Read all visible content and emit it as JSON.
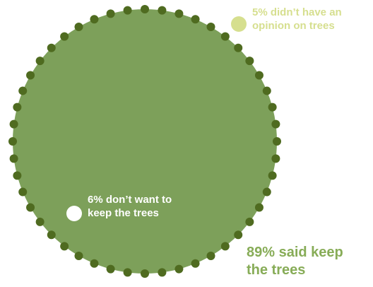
{
  "chart_data": {
    "type": "bubble",
    "title": "",
    "segments": [
      {
        "percent": 89,
        "label_lines": [
          "89% said keep",
          "the trees"
        ],
        "color": "#7da05a",
        "border_color": "#4f6b20",
        "label_color": "#87ac57"
      },
      {
        "percent": 6,
        "label_lines": [
          "6% don’t want to",
          "keep the trees"
        ],
        "color": "#ffffff",
        "label_color": "#ffffff"
      },
      {
        "percent": 5,
        "label_lines": [
          "5% didn’t have an",
          "opinion on trees"
        ],
        "color": "#d6df8f",
        "label_color": "#d6df8f"
      }
    ]
  }
}
